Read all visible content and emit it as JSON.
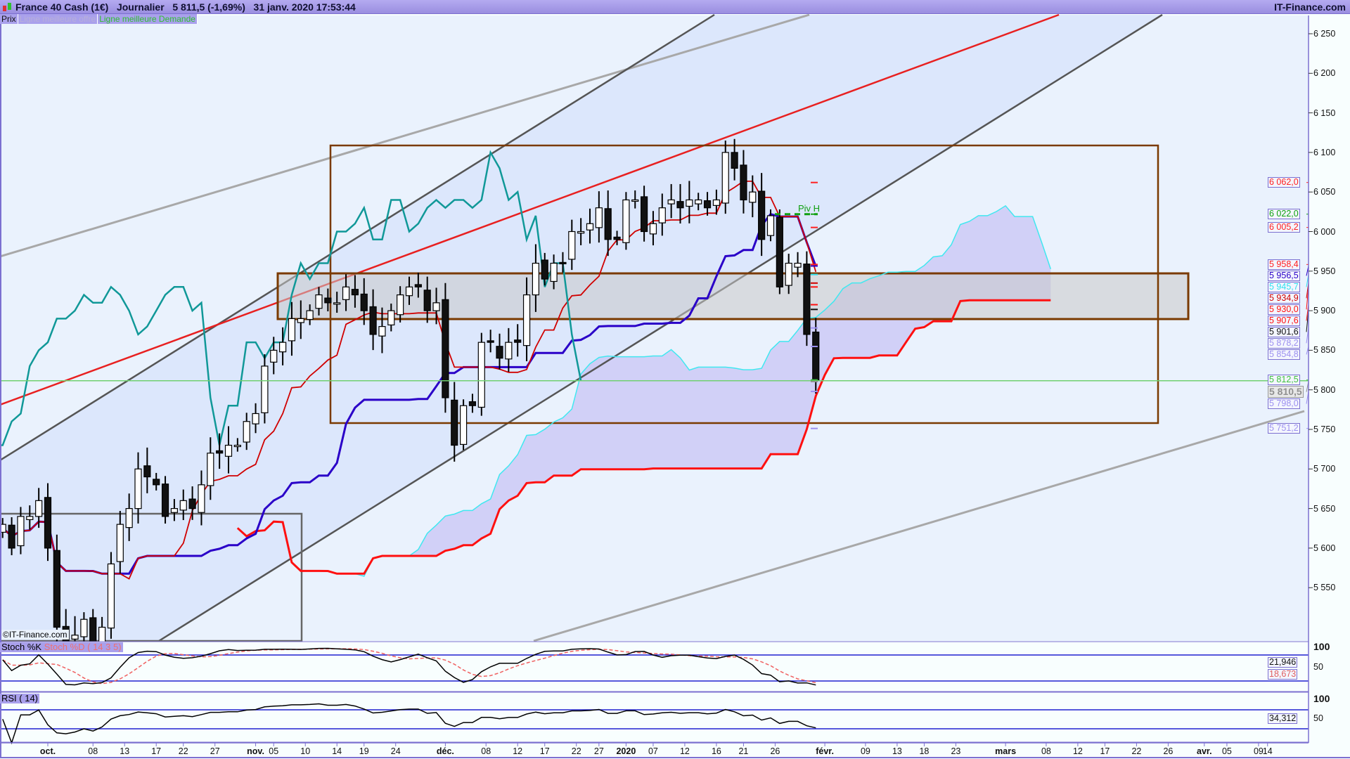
{
  "header": {
    "instrument": "France 40 Cash (1€)",
    "period": "Journalier",
    "last": "5 811,5 (-1,69%)",
    "datetime": "31 janv. 2020 17:53:44",
    "brand": "IT-Finance.com"
  },
  "legend": {
    "price": "Prix",
    "ask_line": "Ligne meilleure offre",
    "bid_line": "Ligne meilleure Demande"
  },
  "watermark": "©IT-Finance.com",
  "pivot_label": "Piv H",
  "stoch": {
    "k_label": "Stoch %K",
    "d_label": "Stoch %D ( 14 3 5)",
    "ticks": [
      "100",
      "50"
    ],
    "k_value": "21,946",
    "d_value": "18,673"
  },
  "rsi": {
    "label": "RSI ( 14)",
    "ticks": [
      "100",
      "50"
    ],
    "value": "34,312"
  },
  "colors": {
    "tenkan": "#d00000",
    "kijun": "#2a00c8",
    "senkou_a": "#40e8f0",
    "senkou_b": "#ff1010",
    "chikou": "#109898",
    "cloud": "#c8c4f4",
    "channel": "#c8d8fa",
    "box": "#7a3a00",
    "pivot": "#10a010"
  },
  "chart_data": {
    "type": "candlestick",
    "title": "France 40 Cash (1€) Journalier",
    "y_ticks": [
      6250,
      6200,
      6150,
      6100,
      6050,
      6000,
      5950,
      5900,
      5850,
      5800,
      5750,
      5700,
      5650,
      5600,
      5550
    ],
    "y_tick_labels": [
      "6 250",
      "6 200",
      "6 150",
      "6 100",
      "6 050",
      "6 000",
      "5 950",
      "5 900",
      "5 850",
      "5 800",
      "5 750",
      "5 700",
      "5 650",
      "5 600",
      "5 550"
    ],
    "ylim": [
      5483,
      6262
    ],
    "x_ticks": [
      {
        "d": "2019-10-01",
        "l": "oct.",
        "b": true
      },
      {
        "d": "2019-10-08",
        "l": "08"
      },
      {
        "d": "2019-10-13",
        "l": "13"
      },
      {
        "d": "2019-10-17",
        "l": "17"
      },
      {
        "d": "2019-10-22",
        "l": "22"
      },
      {
        "d": "2019-10-27",
        "l": "27"
      },
      {
        "d": "2019-11-01",
        "l": "nov.",
        "b": true
      },
      {
        "d": "2019-11-05",
        "l": "05"
      },
      {
        "d": "2019-11-10",
        "l": "10"
      },
      {
        "d": "2019-11-14",
        "l": "14"
      },
      {
        "d": "2019-11-19",
        "l": "19"
      },
      {
        "d": "2019-11-24",
        "l": "24"
      },
      {
        "d": "2019-12-02",
        "l": "déc.",
        "b": true
      },
      {
        "d": "2019-12-08",
        "l": "08"
      },
      {
        "d": "2019-12-12",
        "l": "12"
      },
      {
        "d": "2019-12-17",
        "l": "17"
      },
      {
        "d": "2019-12-22",
        "l": "22"
      },
      {
        "d": "2019-12-27",
        "l": "27"
      },
      {
        "d": "2020-01-02",
        "l": "2020",
        "b": true
      },
      {
        "d": "2020-01-07",
        "l": "07"
      },
      {
        "d": "2020-01-12",
        "l": "12"
      },
      {
        "d": "2020-01-16",
        "l": "16"
      },
      {
        "d": "2020-01-21",
        "l": "21"
      },
      {
        "d": "2020-01-26",
        "l": "26"
      },
      {
        "d": "2020-02-03",
        "l": "févr.",
        "b": true
      },
      {
        "d": "2020-02-09",
        "l": "09"
      },
      {
        "d": "2020-02-13",
        "l": "13"
      },
      {
        "d": "2020-02-18",
        "l": "18"
      },
      {
        "d": "2020-02-23",
        "l": "23"
      },
      {
        "d": "2020-03-02",
        "l": "mars",
        "b": true
      },
      {
        "d": "2020-03-08",
        "l": "08"
      },
      {
        "d": "2020-03-12",
        "l": "12"
      },
      {
        "d": "2020-03-17",
        "l": "17"
      },
      {
        "d": "2020-03-22",
        "l": "22"
      },
      {
        "d": "2020-03-26",
        "l": "26"
      },
      {
        "d": "2020-04-01",
        "l": "avr.",
        "b": true
      },
      {
        "d": "2020-04-05",
        "l": "05"
      },
      {
        "d": "2020-04-09",
        "l": "09"
      },
      {
        "d": "2020-04-14",
        "l": "14"
      }
    ],
    "start_date": "2019-09-24",
    "closes": [
      5630,
      5600,
      5640,
      5640,
      5660,
      5600,
      5500,
      5480,
      5490,
      5510,
      5470,
      5500,
      5580,
      5630,
      5650,
      5700,
      5690,
      5680,
      5640,
      5650,
      5660,
      5650,
      5680,
      5720,
      5720,
      5730,
      5730,
      5760,
      5770,
      5830,
      5850,
      5860,
      5890,
      5890,
      5900,
      5920,
      5910,
      5910,
      5930,
      5920,
      5900,
      5870,
      5880,
      5900,
      5920,
      5930,
      5930,
      5900,
      5910,
      5790,
      5730,
      5780,
      5780,
      5860,
      5860,
      5840,
      5860,
      5860,
      5920,
      5960,
      5940,
      5960,
      5960,
      6000,
      6000,
      6010,
      6030,
      5990,
      5990,
      6040,
      6040,
      6000,
      6010,
      6030,
      6040,
      6030,
      6040,
      6040,
      6030,
      6040,
      6100,
      6080,
      6040,
      6050,
      5990,
      6020,
      5930,
      5960,
      5960,
      5870,
      5811.5
    ],
    "pivot_high": 6022.0,
    "price_tags": [
      {
        "v": "6 062,0",
        "p": 6062,
        "c": "#ff2020"
      },
      {
        "v": "6 022,0",
        "p": 6022,
        "c": "#10a010"
      },
      {
        "v": "6 005,2",
        "p": 6005.2,
        "c": "#ff2020"
      },
      {
        "v": "5 958,4",
        "p": 5958.4,
        "c": "#ff2020"
      },
      {
        "v": "5 956,5",
        "p": 5956.5,
        "c": "#2a00c8"
      },
      {
        "v": "5 945,7",
        "p": 5945.7,
        "c": "#30e0f0"
      },
      {
        "v": "5 934,9",
        "p": 5934.9,
        "c": "#d00000"
      },
      {
        "v": "5 930,0",
        "p": 5930,
        "c": "#ff1010"
      },
      {
        "v": "5 907,6",
        "p": 5907.6,
        "c": "#ff1010"
      },
      {
        "v": "5 901,6",
        "p": 5901.6,
        "c": "#111111"
      },
      {
        "v": "5 878,2",
        "p": 5878.2,
        "c": "#9c90f0"
      },
      {
        "v": "5 854,8",
        "p": 5854.8,
        "c": "#9c90f0"
      },
      {
        "v": "5 812,5",
        "p": 5812.5,
        "c": "#40c040"
      },
      {
        "v": "5 810,5",
        "p": 5810.5,
        "c": "#909090"
      },
      {
        "v": "5 798,0",
        "p": 5798,
        "c": "#9c90f0"
      },
      {
        "v": "5 751,2",
        "p": 5751.2,
        "c": "#9c90f0"
      }
    ]
  }
}
